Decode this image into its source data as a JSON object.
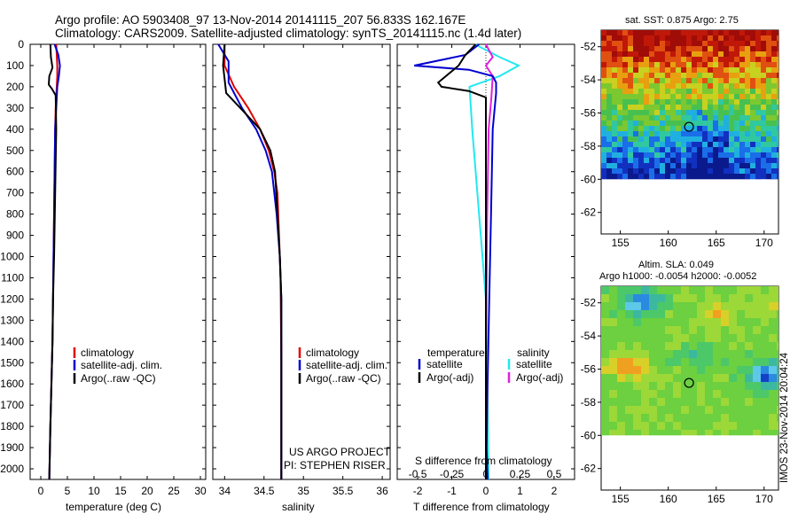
{
  "header": {
    "line1": "Argo profile: AO 5903408_97 13-Nov-2014 20141115_207 56.833S 162.167E",
    "line2": "Climatology: CARS2009. Satellite-adjusted climatology: synTS_20141115.nc (1.4d later)"
  },
  "depth_ticks": [
    0,
    100,
    200,
    300,
    400,
    500,
    600,
    700,
    800,
    900,
    1000,
    1100,
    1200,
    1300,
    1400,
    1500,
    1600,
    1700,
    1800,
    1900,
    2000
  ],
  "colors": {
    "climatology": "#e00000",
    "satellite": "#0000d0",
    "argo": "#000000",
    "sal_sat": "#22e8f0",
    "sal_argo": "#e020e0"
  },
  "temperature_panel": {
    "xlabel": "temperature (deg C)",
    "xticks": [
      "0",
      "5",
      "10",
      "15",
      "20",
      "25",
      "30"
    ],
    "legend": [
      "climatology",
      "satellite-adj. clim.",
      "Argo(..raw -QC)"
    ]
  },
  "salinity_panel": {
    "xlabel": "salinity",
    "xticks": [
      "34",
      "34.5",
      "35",
      "35.5",
      "36"
    ],
    "legend": [
      "climatology",
      "satellite-adj. clim.",
      "Argo(..raw -QC)"
    ],
    "credit1": "US ARGO PROJECT",
    "credit2": "PI: STEPHEN RISER"
  },
  "difference_panel": {
    "top_label": "S difference from climatology",
    "top_ticks": [
      "-0.5",
      "-0.25",
      "0",
      "0.25",
      "0.5"
    ],
    "xlabel": "T difference from climatology",
    "xticks": [
      "-2",
      "-1",
      "0",
      "1",
      "2"
    ],
    "legend_left_title": "temperature",
    "legend_right_title": "salinity",
    "legend_left": [
      "satellite",
      "Argo(-adj)"
    ],
    "legend_right": [
      "satellite",
      "Argo(-adj)"
    ]
  },
  "sst_map": {
    "title": "sat. SST: 0.875 Argo: 2.75",
    "lat_ticks": [
      "-52",
      "-54",
      "-56",
      "-58",
      "-60",
      "-62"
    ],
    "lon_ticks": [
      "155",
      "160",
      "165",
      "170"
    ]
  },
  "sla_map": {
    "title1": "Altim. SLA: 0.049",
    "title2": "Argo h1000: -0.0054 h2000: -0.0052",
    "lat_ticks": [
      "-52",
      "-54",
      "-56",
      "-58",
      "-60",
      "-62"
    ],
    "lon_ticks": [
      "155",
      "160",
      "165",
      "170"
    ]
  },
  "side_stamp": "IMOS 23-Nov-2014 20:04:24",
  "chart_data": [
    {
      "type": "line",
      "xlabel": "temperature (deg C)",
      "xlim": [
        -2,
        31
      ],
      "ylim": [
        2050,
        0
      ],
      "series": [
        {
          "name": "climatology",
          "x": [
            2.9,
            3.0,
            3.1,
            3.1,
            3.0,
            2.8,
            2.7,
            2.6,
            2.5,
            2.4,
            2.3,
            2.2,
            2.0,
            1.8,
            1.6
          ],
          "y": [
            0,
            50,
            100,
            150,
            200,
            300,
            400,
            600,
            800,
            1000,
            1200,
            1400,
            1600,
            1800,
            2050
          ]
        },
        {
          "name": "satellite-adj. clim.",
          "x": [
            2.6,
            3.3,
            3.6,
            3.4,
            3.1,
            2.9,
            2.7,
            2.6,
            2.5,
            2.4,
            2.3,
            2.2,
            2.0,
            1.8,
            1.6
          ],
          "y": [
            0,
            50,
            100,
            150,
            200,
            300,
            400,
            600,
            800,
            1000,
            1200,
            1400,
            1600,
            1800,
            2050
          ]
        },
        {
          "name": "Argo(..raw -QC)",
          "x": [
            1.8,
            1.9,
            2.2,
            1.6,
            1.5,
            2.1,
            2.8,
            2.9,
            2.7,
            2.5,
            2.3,
            2.2,
            2.0,
            1.8,
            1.6
          ],
          "y": [
            0,
            60,
            110,
            150,
            190,
            210,
            240,
            400,
            700,
            1000,
            1200,
            1400,
            1600,
            1800,
            2050
          ]
        }
      ]
    },
    {
      "type": "line",
      "xlabel": "salinity",
      "xlim": [
        33.85,
        36.1
      ],
      "ylim": [
        2050,
        0
      ],
      "series": [
        {
          "name": "climatology",
          "x": [
            34.0,
            34.0,
            34.12,
            34.3,
            34.45,
            34.56,
            34.63,
            34.67,
            34.69,
            34.71,
            34.72,
            34.72
          ],
          "y": [
            0,
            100,
            200,
            300,
            400,
            500,
            600,
            700,
            900,
            1100,
            1500,
            2050
          ]
        },
        {
          "name": "satellite-adj. clim.",
          "x": [
            33.92,
            34.05,
            34.05,
            34.22,
            34.4,
            34.52,
            34.6,
            34.66,
            34.7,
            34.72,
            34.72
          ],
          "y": [
            0,
            80,
            180,
            300,
            400,
            500,
            600,
            800,
            1000,
            1200,
            2050
          ]
        },
        {
          "name": "Argo(..raw -QC)",
          "x": [
            34.0,
            33.98,
            34.02,
            34.2,
            34.45,
            34.58,
            34.64,
            34.67,
            34.7,
            34.72,
            34.72
          ],
          "y": [
            0,
            100,
            230,
            300,
            400,
            500,
            600,
            800,
            1000,
            1200,
            2050
          ]
        }
      ]
    },
    {
      "type": "line",
      "xlabel": "T difference from climatology",
      "top_label": "S difference from climatology",
      "xlim": [
        -2.6,
        2.6
      ],
      "ylim": [
        2050,
        0
      ],
      "series": [
        {
          "name": "temperature satellite",
          "x": [
            -0.2,
            -0.6,
            -2.1,
            -0.5,
            0.2,
            0.3,
            0.3,
            0.2,
            0.15,
            0.1,
            0.05,
            0.02,
            0.05
          ],
          "y": [
            0,
            50,
            100,
            120,
            150,
            180,
            230,
            400,
            800,
            1200,
            1600,
            1900,
            2050
          ]
        },
        {
          "name": "temperature Argo(-adj)",
          "x": [
            -0.3,
            -0.6,
            -0.8,
            -1.4,
            -1.3,
            -0.5,
            0.0,
            0.0,
            0.0,
            0.0
          ],
          "y": [
            0,
            50,
            100,
            180,
            200,
            220,
            250,
            500,
            1500,
            2050
          ]
        },
        {
          "name": "salinity satellite",
          "x": [
            -0.08,
            0.1,
            0.24,
            0.1,
            -0.12,
            -0.1,
            -0.05,
            0.0,
            0.01,
            0.02
          ],
          "y": [
            0,
            60,
            100,
            150,
            200,
            400,
            800,
            1200,
            1600,
            2050
          ]
        },
        {
          "name": "salinity Argo(-adj)",
          "x": [
            0.0,
            0.05,
            0.0,
            0.05,
            0.04,
            0.02,
            0.01,
            0.0,
            0.0
          ],
          "y": [
            0,
            60,
            100,
            150,
            250,
            400,
            800,
            1500,
            2050
          ]
        }
      ]
    },
    {
      "type": "heatmap",
      "title": "sat. SST: 0.875 Argo: 2.75",
      "xlim": [
        153,
        171.5
      ],
      "ylim": [
        -63.3,
        -51
      ],
      "data_extent": {
        "lat": [
          -60,
          -51
        ],
        "lon": [
          153,
          171.5
        ]
      },
      "argo_position": {
        "lon": 162.167,
        "lat": -56.833
      }
    },
    {
      "type": "heatmap",
      "title": "Altim. SLA: 0.049",
      "subtitle": "Argo h1000: -0.0054 h2000: -0.0052",
      "xlim": [
        153,
        171.5
      ],
      "ylim": [
        -63.3,
        -51
      ],
      "data_extent": {
        "lat": [
          -60,
          -51
        ],
        "lon": [
          153,
          171.5
        ]
      },
      "argo_position": {
        "lon": 162.167,
        "lat": -56.833
      }
    }
  ]
}
